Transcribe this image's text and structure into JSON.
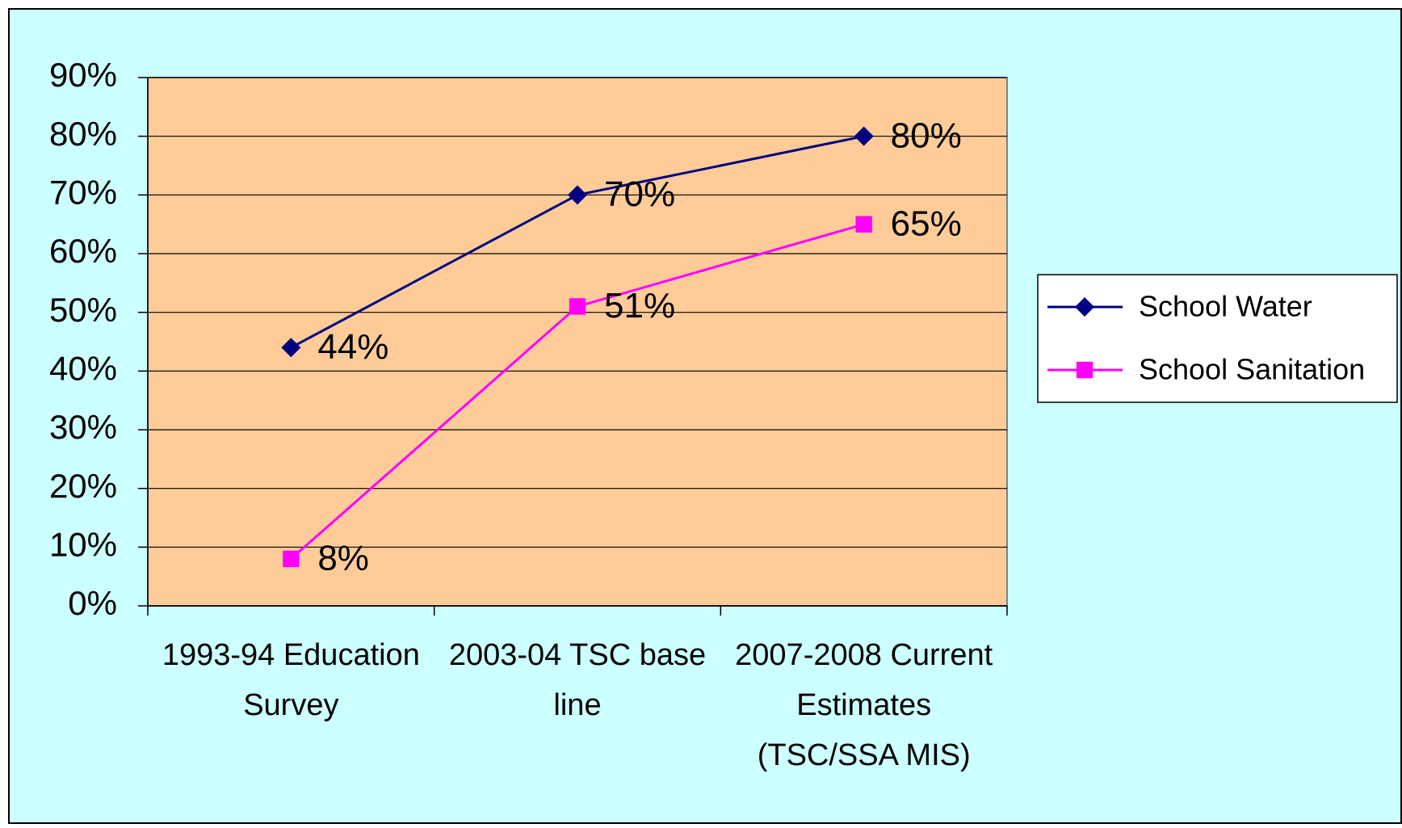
{
  "chart_data": {
    "type": "line",
    "categories": [
      [
        "1993-94 Education",
        "Survey"
      ],
      [
        "2003-04 TSC base",
        "line"
      ],
      [
        "2007-2008 Current",
        "Estimates",
        "(TSC/SSA MIS)"
      ]
    ],
    "series": [
      {
        "name": "School Water",
        "color": "#000080",
        "marker": "diamond",
        "values": [
          44,
          70,
          80
        ],
        "value_labels": [
          "44%",
          "70%",
          "80%"
        ]
      },
      {
        "name": "School Sanitation",
        "color": "#ff00ff",
        "marker": "square",
        "values": [
          8,
          51,
          65
        ],
        "value_labels": [
          "8%",
          "51%",
          "65%"
        ]
      }
    ],
    "ylim": [
      0,
      90
    ],
    "yticks": [
      {
        "value": 0,
        "label": "0%"
      },
      {
        "value": 10,
        "label": "10%"
      },
      {
        "value": 20,
        "label": "20%"
      },
      {
        "value": 30,
        "label": "30%"
      },
      {
        "value": 40,
        "label": "40%"
      },
      {
        "value": 50,
        "label": "50%"
      },
      {
        "value": 60,
        "label": "60%"
      },
      {
        "value": 70,
        "label": "70%"
      },
      {
        "value": 80,
        "label": "80%"
      },
      {
        "value": 90,
        "label": "90%"
      }
    ],
    "grid": true,
    "legend": "right"
  }
}
